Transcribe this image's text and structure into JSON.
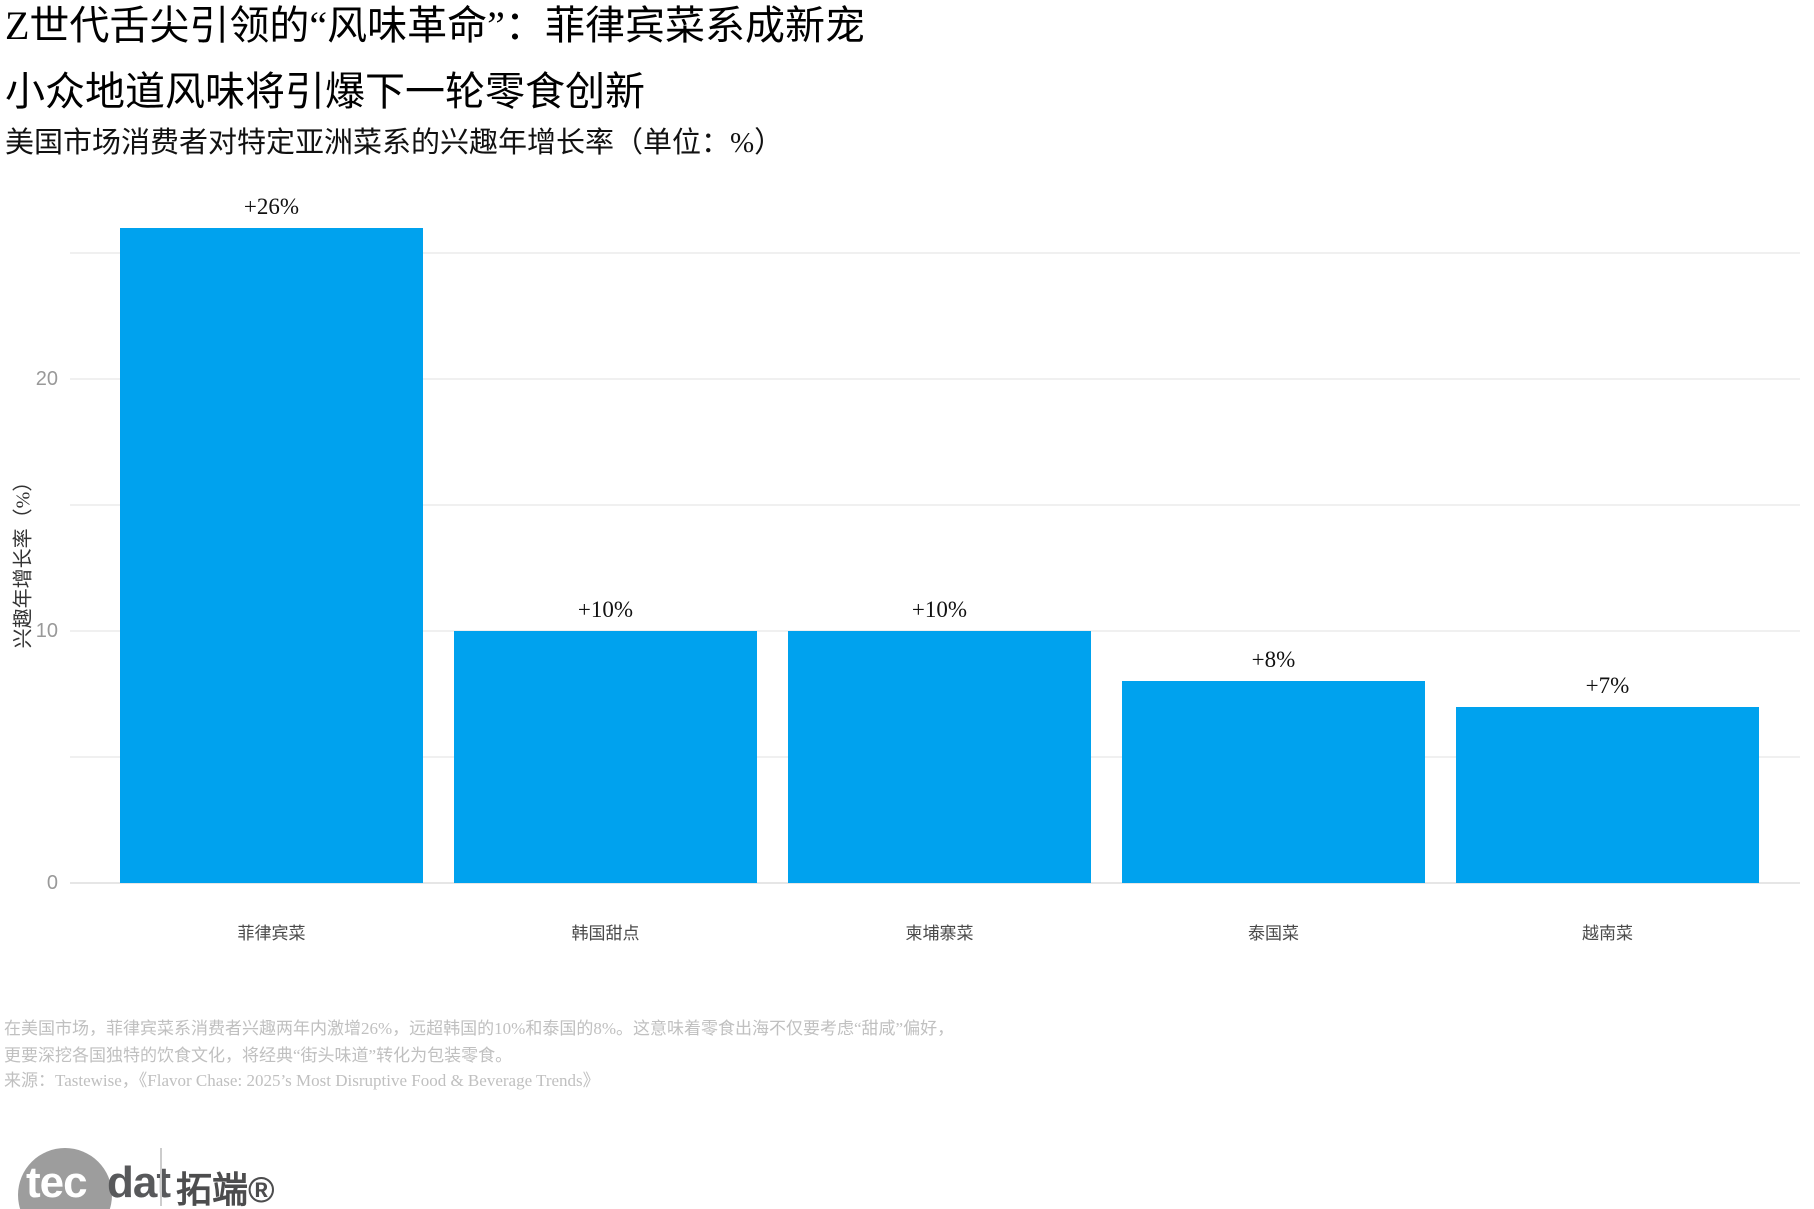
{
  "header": {
    "title_line1": "Z世代舌尖引领的“风味革命”：菲律宾菜系成新宠",
    "title_line2": "小众地道风味将引爆下一轮零食创新",
    "subtitle": "美国市场消费者对特定亚洲菜系的兴趣年增长率（单位：%）"
  },
  "chart_data": {
    "type": "bar",
    "title": "美国市场消费者对特定亚洲菜系的兴趣年增长率（单位：%）",
    "ylabel": "兴趣年增长率（%）",
    "xlabel": "",
    "categories": [
      "菲律宾菜",
      "韩国甜点",
      "柬埔寨菜",
      "泰国菜",
      "越南菜"
    ],
    "values": [
      26,
      10,
      10,
      8,
      7
    ],
    "value_labels": [
      "+26%",
      "+10%",
      "+10%",
      "+8%",
      "+7%"
    ],
    "yticks": [
      0,
      10,
      20
    ],
    "gridlines": [
      5,
      10,
      15,
      20,
      25
    ],
    "ylim": [
      0,
      27
    ],
    "grid": "horizontal",
    "legend": "none",
    "bar_color": "#00a2ee"
  },
  "footer": {
    "note_line1": "在美国市场，菲律宾菜系消费者兴趣两年内激增26%，远超韩国的10%和泰国的8%。这意味着零食出海不仅要考虑“甜咸”偏好，",
    "note_line2": "更要深挖各国独特的饮食文化，将经典“街头味道”转化为包装零食。",
    "source": "来源：Tastewise，《Flavor Chase: 2025’s Most Disruptive Food & Beverage Trends》"
  },
  "logo": {
    "circle_text": "tec",
    "suffix_text": "dat",
    "brand": "拓端®"
  }
}
